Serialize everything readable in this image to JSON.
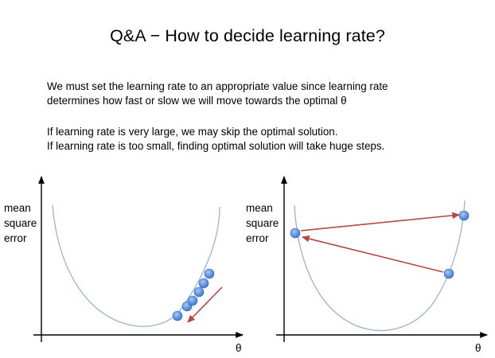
{
  "title": "Q&A − How to decide learning rate?",
  "paragraph1": {
    "line1": "We must set the learning rate to an appropriate value since learning rate",
    "line2": "determines how fast or slow we will move towards the optimal θ"
  },
  "paragraph2": {
    "line1": "If learning rate is very large, we may skip the optimal solution.",
    "line2": "If learning rate is too small, finding optimal solution will take huge steps."
  },
  "left_plot": {
    "ylabel": {
      "line1": "mean",
      "line2": "square",
      "line3": "error"
    },
    "xlabel": "θ"
  },
  "right_plot": {
    "ylabel": {
      "line1": "mean",
      "line2": "square",
      "line3": "error"
    },
    "xlabel": "θ"
  },
  "colors": {
    "curve": "#9ab3cf",
    "point": "#5e92e0",
    "point_stroke": "#3c6db5",
    "arrow": "#b5474a",
    "axis": "#000000"
  }
}
